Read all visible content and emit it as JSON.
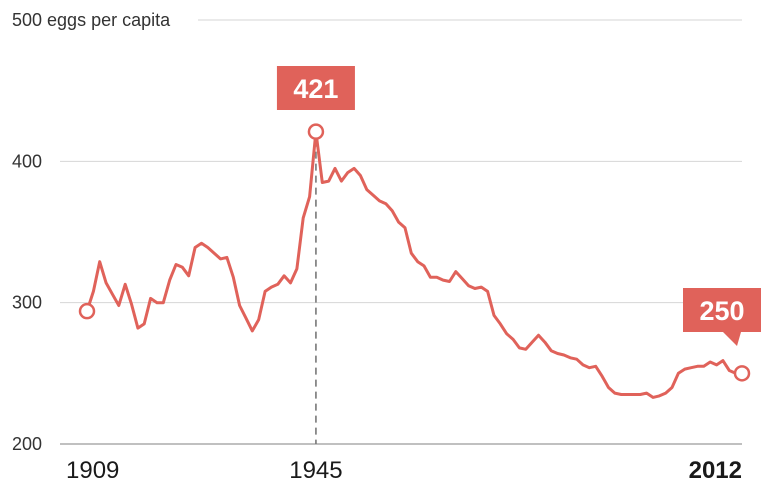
{
  "chart_data": {
    "type": "line",
    "ylabel": "eggs per capita",
    "y_ticks": [
      200,
      300,
      400,
      500
    ],
    "top_tick_label": "500 eggs per capita",
    "ylim": [
      200,
      500
    ],
    "xlim": [
      1909,
      2012
    ],
    "x_tick_labels": [
      "1909",
      "1945",
      "2012"
    ],
    "grid": true,
    "colors": {
      "series": "#e0625a",
      "callout": "#e0625a"
    },
    "series": [
      {
        "x": [
          1909,
          1910,
          1911,
          1912,
          1913,
          1914,
          1915,
          1916,
          1917,
          1918,
          1919,
          1920,
          1921,
          1922,
          1923,
          1924,
          1925,
          1926,
          1927,
          1928,
          1929,
          1930,
          1931,
          1932,
          1933,
          1934,
          1935,
          1936,
          1937,
          1938,
          1939,
          1940,
          1941,
          1942,
          1943,
          1944,
          1945,
          1946,
          1947,
          1948,
          1949,
          1950,
          1951,
          1952,
          1953,
          1954,
          1955,
          1956,
          1957,
          1958,
          1959,
          1960,
          1961,
          1962,
          1963,
          1964,
          1965,
          1966,
          1967,
          1968,
          1969,
          1970,
          1971,
          1972,
          1973,
          1974,
          1975,
          1976,
          1977,
          1978,
          1979,
          1980,
          1981,
          1982,
          1983,
          1984,
          1985,
          1986,
          1987,
          1988,
          1989,
          1990,
          1991,
          1992,
          1993,
          1994,
          1995,
          1996,
          1997,
          1998,
          1999,
          2000,
          2001,
          2002,
          2003,
          2004,
          2005,
          2006,
          2007,
          2008,
          2009,
          2010,
          2011,
          2012
        ],
        "values": [
          294,
          308,
          329,
          314,
          306,
          298,
          313,
          299,
          282,
          285,
          303,
          300,
          300,
          316,
          327,
          325,
          319,
          339,
          342,
          339,
          335,
          331,
          332,
          318,
          298,
          289,
          280,
          288,
          308,
          311,
          313,
          319,
          314,
          324,
          360,
          375,
          421,
          385,
          386,
          395,
          386,
          392,
          395,
          390,
          380,
          376,
          372,
          370,
          365,
          357,
          353,
          335,
          329,
          326,
          318,
          318,
          316,
          315,
          322,
          317,
          312,
          310,
          311,
          308,
          291,
          285,
          278,
          274,
          268,
          267,
          272,
          277,
          272,
          266,
          264,
          263,
          261,
          260,
          256,
          254,
          255,
          248,
          240,
          236,
          235,
          235,
          235,
          235,
          236,
          233,
          234,
          236,
          240,
          250,
          253,
          254,
          255,
          255,
          258,
          256,
          259,
          252,
          250,
          250
        ],
        "name": ""
      }
    ],
    "annotations": [
      {
        "label": "421",
        "x": 1945,
        "y": 421
      },
      {
        "label": "250",
        "x": 2012,
        "y": 250
      }
    ],
    "start_marker": {
      "x": 1909,
      "y": 294
    }
  }
}
